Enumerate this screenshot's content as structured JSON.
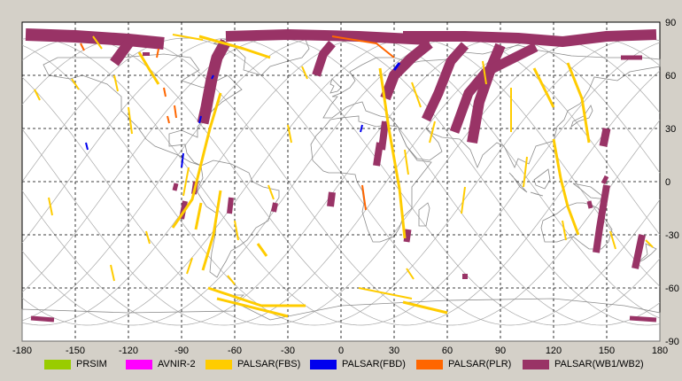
{
  "chart_data": {
    "type": "map",
    "projection": "equirectangular",
    "x_ticks": [
      "-180",
      "-150",
      "-120",
      "-90",
      "-60",
      "-30",
      "0",
      "30",
      "60",
      "90",
      "120",
      "150",
      "180"
    ],
    "y_ticks": [
      "90",
      "60",
      "30",
      "0",
      "-30",
      "-60",
      "-90"
    ],
    "xlim": [
      -180,
      180
    ],
    "ylim": [
      -90,
      90
    ],
    "grid": "dashed, every 30 degrees",
    "orbit_track_color": "#a8a8a8",
    "land_outline_color": "#8c8c8c",
    "legend": [
      {
        "label": "PRSIM",
        "color": "#99cc00"
      },
      {
        "label": "AVNIR-2",
        "color": "#ff00ff"
      },
      {
        "label": "PALSAR(FBS)",
        "color": "#ffcc00"
      },
      {
        "label": "PALSAR(FBD)",
        "color": "#0000ee"
      },
      {
        "label": "PALSAR(PLR)",
        "color": "#ff6600"
      },
      {
        "label": "PALSAR(WB1/WB2)",
        "color": "#993366"
      }
    ]
  }
}
